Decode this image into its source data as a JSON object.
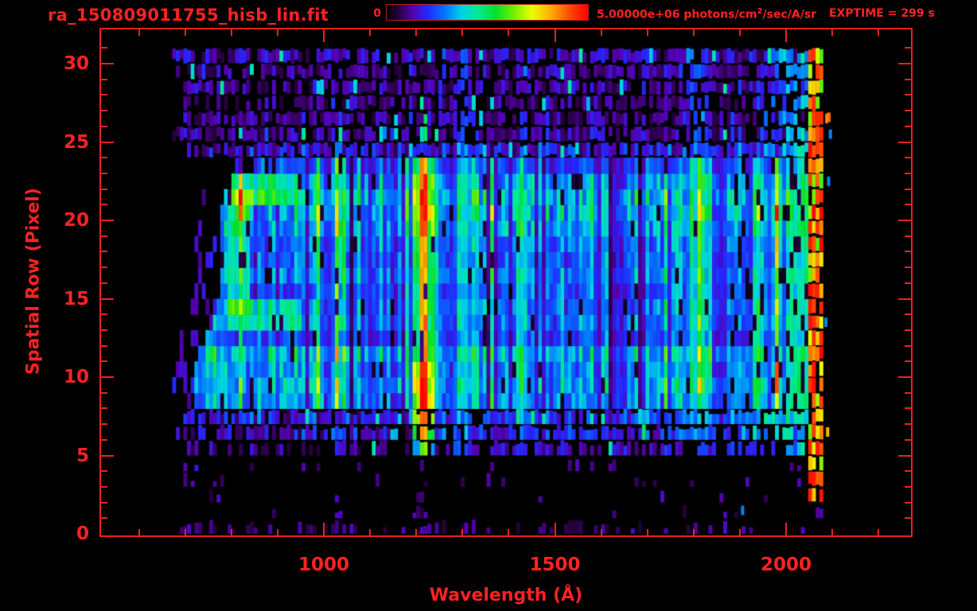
{
  "window": {
    "background": "#000000",
    "accent_red": "#ff2222"
  },
  "header": {
    "filename": "ra_150809011755_hisb_lin.fit",
    "colorbar_min_label": "0",
    "flux_label_prefix": "5.00000e+06 photons/cm",
    "flux_label_sup": "2",
    "flux_label_suffix": "/sec/A/sr",
    "exptime_label": "EXPTIME = 299 s"
  },
  "axes": {
    "x_title": "Wavelength (Å)",
    "y_title": "Spatial Row (Pixel)"
  },
  "chart_data": {
    "type": "heatmap",
    "title": "ra_150809011755_hisb_lin.fit",
    "xlabel": "Wavelength (Å)",
    "ylabel": "Spatial Row (Pixel)",
    "x_axis": {
      "unit": "Angstrom",
      "range": [
        515,
        2273
      ],
      "major_ticks": [
        1000,
        1500,
        2000
      ],
      "minor_tick_step": 100
    },
    "y_axis": {
      "unit": "detector row",
      "range": [
        0,
        32.2
      ],
      "major_ticks": [
        0,
        5,
        10,
        15,
        20,
        25,
        30
      ],
      "minor_tick_step": 1
    },
    "colorbar": {
      "min": 0,
      "max": 5000000,
      "min_label": "0",
      "max_label": "5.00000e+06",
      "units": "photons/cm^2/sec/A/sr",
      "colormap": "rainbow",
      "stops": [
        [
          0.0,
          [
            0,
            0,
            0
          ]
        ],
        [
          0.06,
          [
            40,
            0,
            64
          ]
        ],
        [
          0.13,
          [
            86,
            0,
            176
          ]
        ],
        [
          0.2,
          [
            38,
            38,
            255
          ]
        ],
        [
          0.29,
          [
            0,
            118,
            255
          ]
        ],
        [
          0.37,
          [
            0,
            208,
            235
          ]
        ],
        [
          0.45,
          [
            0,
            235,
            150
          ]
        ],
        [
          0.54,
          [
            0,
            225,
            48
          ]
        ],
        [
          0.63,
          [
            112,
            240,
            0
          ]
        ],
        [
          0.72,
          [
            235,
            255,
            0
          ]
        ],
        [
          0.82,
          [
            255,
            170,
            0
          ]
        ],
        [
          0.91,
          [
            255,
            72,
            0
          ]
        ],
        [
          1.0,
          [
            255,
            0,
            0
          ]
        ]
      ]
    },
    "exptime_seconds": 299,
    "data_extent": {
      "wavelength": [
        672,
        2078
      ],
      "rows": [
        0,
        30
      ]
    },
    "grid": {
      "column_width_angstrom": 8
    },
    "rows": [
      {
        "type": "sparse",
        "p": 0.28,
        "v": 0.09,
        "start": 676
      },
      {
        "type": "sparse",
        "p": 0.06,
        "v": 0.09,
        "start": 700
      },
      {
        "type": "sparse",
        "p": 0.06,
        "v": 0.09,
        "start": 700
      },
      {
        "type": "sparse",
        "p": 0.07,
        "v": 0.09,
        "start": 700
      },
      {
        "type": "sparse",
        "p": 0.1,
        "v": 0.1,
        "start": 700
      },
      {
        "type": "noise",
        "p": 0.5,
        "v": 0.11,
        "start": 700
      },
      {
        "type": "noise",
        "p": 0.78,
        "v": 0.15,
        "start": 696
      },
      {
        "type": "noise",
        "p": 0.88,
        "v": 0.18,
        "start": 692
      },
      {
        "type": "bright",
        "m": 0.95,
        "start": 720
      },
      {
        "type": "bright",
        "m": 1.1,
        "start": 716
      },
      {
        "type": "bright",
        "m": 1.0,
        "start": 720
      },
      {
        "type": "bright",
        "m": 1.15,
        "start": 728
      },
      {
        "type": "bright",
        "m": 0.78,
        "start": 744
      },
      {
        "type": "bright",
        "m": 0.92,
        "start": 760
      },
      {
        "type": "bright",
        "m": 0.88,
        "start": 768
      },
      {
        "type": "bright",
        "m": 0.82,
        "start": 774
      },
      {
        "type": "bright",
        "m": 0.95,
        "start": 774
      },
      {
        "type": "bright",
        "m": 0.86,
        "start": 774
      },
      {
        "type": "bright",
        "m": 0.92,
        "start": 774
      },
      {
        "type": "bright",
        "m": 1.05,
        "start": 774
      },
      {
        "type": "bright",
        "m": 1.15,
        "start": 780
      },
      {
        "type": "bright",
        "m": 1.2,
        "start": 788
      },
      {
        "type": "bright",
        "m": 1.05,
        "start": 800
      },
      {
        "type": "bright",
        "m": 0.8,
        "start": 848
      },
      {
        "type": "noise",
        "p": 0.88,
        "v": 0.17,
        "start": 744
      },
      {
        "type": "noise",
        "p": 0.8,
        "v": 0.13,
        "start": 700
      },
      {
        "type": "noise",
        "p": 0.78,
        "v": 0.12,
        "start": 688
      },
      {
        "type": "noise",
        "p": 0.72,
        "v": 0.11,
        "start": 700
      },
      {
        "type": "noise",
        "p": 0.78,
        "v": 0.12,
        "start": 688
      },
      {
        "type": "noise",
        "p": 0.8,
        "v": 0.12,
        "start": 684
      },
      {
        "type": "noise",
        "p": 0.85,
        "v": 0.14,
        "start": 676
      },
      {
        "type": "empty"
      }
    ],
    "emission_lines": [
      {
        "wavelength": 1026,
        "sigma": 9,
        "amplitude": 0.1
      },
      {
        "wavelength": 1304,
        "sigma": 12,
        "amplitude": 0.2
      },
      {
        "wavelength": 1430,
        "sigma": 10,
        "amplitude": 0.1
      },
      {
        "wavelength": 1806,
        "sigma": 16,
        "amplitude": 0.26
      }
    ],
    "lyman_alpha": {
      "wavelength": 1216,
      "saturated": true
    },
    "lyman_alpha_core_by_row": [
      0.1,
      0.1,
      0.1,
      0.1,
      0.12,
      0.62,
      0.85,
      0.96,
      1.0,
      1.0,
      0.96,
      0.9,
      0.8,
      0.84,
      0.8,
      0.78,
      0.8,
      0.82,
      0.86,
      0.93,
      0.99,
      1.0,
      0.93,
      0.8,
      0.5,
      0.45,
      0.4,
      0.3,
      0.25,
      0.2,
      0.2,
      0
    ],
    "features": {
      "bright_band_rows": [
        8,
        23
      ],
      "upper_noise_band_rows": [
        24,
        30
      ],
      "lower_noise_band_rows": [
        5,
        7
      ],
      "right_enhancement": {
        "from_wavelength": 1900,
        "max_boost": 0.26
      },
      "right_edge_strip": {
        "wavelength": [
          2052,
          2078
        ],
        "rows": [
          2,
          30
        ],
        "intensity": [
          0.6,
          1.0
        ]
      },
      "c_shaped_arc": {
        "wavelength": [
          793,
          948
        ],
        "rows": [
          13,
          22
        ]
      }
    },
    "extra_cells": [
      {
        "row": 1,
        "wavelength": 1906,
        "value": 0.3
      },
      {
        "row": 26,
        "wavelength": 2088,
        "value": 0.85
      },
      {
        "row": 22,
        "wavelength": 2092,
        "value": 0.3
      },
      {
        "row": 25,
        "wavelength": 2096,
        "value": 0.3
      },
      {
        "row": 13,
        "wavelength": 2086,
        "value": 0.3
      },
      {
        "row": 6,
        "wavelength": 2090,
        "value": 0.8
      }
    ],
    "render_seed": 11
  }
}
